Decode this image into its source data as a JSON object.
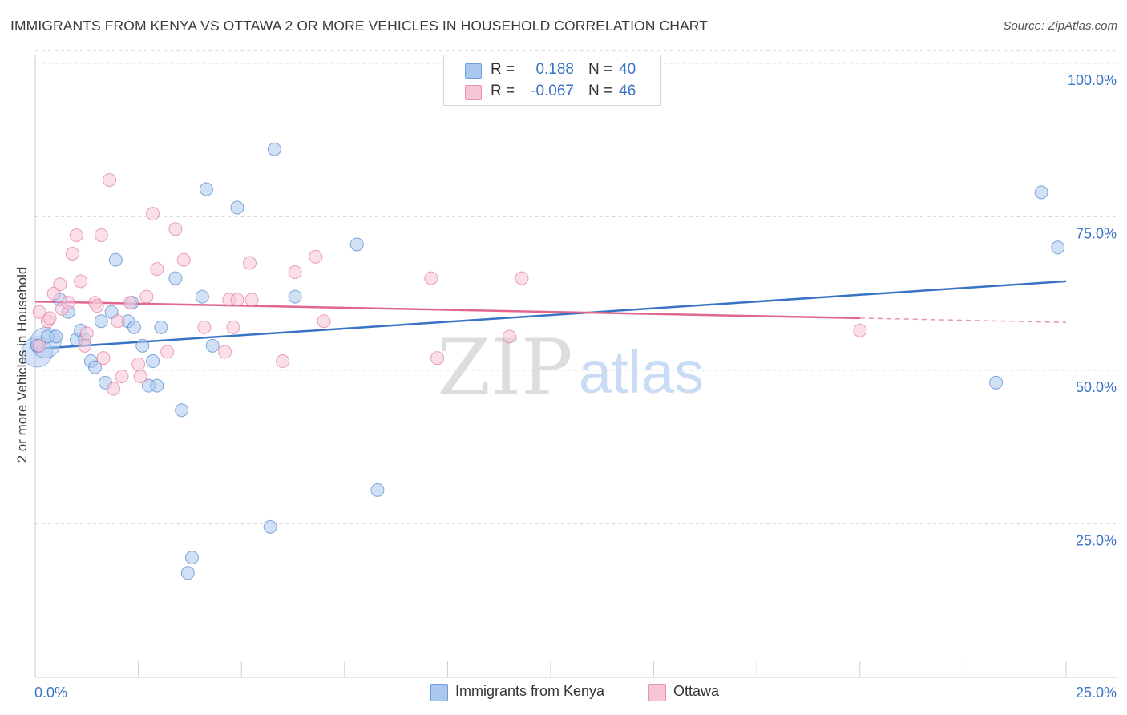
{
  "title": "IMMIGRANTS FROM KENYA VS OTTAWA 2 OR MORE VEHICLES IN HOUSEHOLD CORRELATION CHART",
  "source": "Source: ZipAtlas.com",
  "stats": [
    {
      "r_label": "R =",
      "r_value": "0.188",
      "n_label": "N =",
      "n_value": "40",
      "color": "#aac8ef",
      "border": "#6f9fdc"
    },
    {
      "r_label": "R =",
      "r_value": "-0.067",
      "n_label": "N =",
      "n_value": "46",
      "color": "#f8c5d6",
      "border": "#e98fb0"
    }
  ],
  "legend": [
    {
      "label": "Immigrants from Kenya",
      "color": "#aac8ef",
      "border": "#6f9fdc"
    },
    {
      "label": "Ottawa",
      "color": "#f8c5d6",
      "border": "#e98fb0"
    }
  ],
  "watermark": {
    "zip": "ZIP",
    "atlas": "atlas"
  },
  "chart_data": {
    "type": "scatter",
    "title": "IMMIGRANTS FROM KENYA VS OTTAWA 2 OR MORE VEHICLES IN HOUSEHOLD CORRELATION CHART",
    "xlabel": "",
    "ylabel": "2 or more Vehicles in Household",
    "xlim": [
      0,
      25
    ],
    "ylim": [
      0,
      105
    ],
    "x_tick_labels": [
      "0.0%",
      "25.0%"
    ],
    "x_ticks": [
      0,
      25
    ],
    "y_tick_labels": [
      "25.0%",
      "50.0%",
      "75.0%",
      "100.0%"
    ],
    "y_ticks": [
      25,
      50,
      75,
      100
    ],
    "grid": true,
    "colors": {
      "kenya": "#3973c6",
      "ottawa": "#e0658f",
      "tick_label": "#3973c6"
    },
    "series": [
      {
        "name": "Immigrants from Kenya",
        "color": "#3973c6",
        "fill": "#aac8ef",
        "points": [
          [
            0.05,
            54.0
          ],
          [
            0.3,
            55.5
          ],
          [
            0.5,
            55.5
          ],
          [
            0.6,
            61.5
          ],
          [
            0.8,
            59.5
          ],
          [
            1.0,
            55.0
          ],
          [
            1.1,
            56.5
          ],
          [
            1.2,
            55.0
          ],
          [
            1.35,
            51.5
          ],
          [
            1.45,
            50.5
          ],
          [
            1.6,
            58.0
          ],
          [
            1.7,
            48.0
          ],
          [
            1.85,
            59.5
          ],
          [
            1.95,
            68.0
          ],
          [
            2.25,
            58.0
          ],
          [
            2.35,
            61.0
          ],
          [
            2.4,
            57.0
          ],
          [
            2.6,
            54.0
          ],
          [
            2.75,
            47.5
          ],
          [
            2.85,
            51.5
          ],
          [
            2.95,
            47.5
          ],
          [
            3.05,
            57.0
          ],
          [
            3.4,
            65.0
          ],
          [
            3.55,
            43.5
          ],
          [
            3.7,
            17.0
          ],
          [
            3.8,
            19.5
          ],
          [
            4.05,
            62.0
          ],
          [
            4.15,
            79.5
          ],
          [
            4.3,
            54.0
          ],
          [
            4.9,
            76.5
          ],
          [
            5.7,
            24.5
          ],
          [
            5.8,
            86.0
          ],
          [
            6.3,
            62.0
          ],
          [
            7.8,
            70.5
          ],
          [
            8.3,
            30.5
          ],
          [
            23.3,
            48.0
          ],
          [
            24.4,
            79.0
          ],
          [
            24.8,
            70.0
          ]
        ],
        "big_points": [
          [
            0.05,
            53.0
          ],
          [
            0.25,
            54.5
          ]
        ],
        "trend": {
          "x": [
            0,
            25
          ],
          "y": [
            53.5,
            64.5
          ]
        }
      },
      {
        "name": "Ottawa",
        "color": "#e0658f",
        "fill": "#f8c5d6",
        "points": [
          [
            0.1,
            59.5
          ],
          [
            0.3,
            58.0
          ],
          [
            0.35,
            58.5
          ],
          [
            0.45,
            62.5
          ],
          [
            0.6,
            64.0
          ],
          [
            0.65,
            60.0
          ],
          [
            0.8,
            61.0
          ],
          [
            0.9,
            69.0
          ],
          [
            1.0,
            72.0
          ],
          [
            1.1,
            64.5
          ],
          [
            1.2,
            54.0
          ],
          [
            1.25,
            56.0
          ],
          [
            1.45,
            61.0
          ],
          [
            1.5,
            60.5
          ],
          [
            1.6,
            72.0
          ],
          [
            1.65,
            52.0
          ],
          [
            1.8,
            81.0
          ],
          [
            1.9,
            47.0
          ],
          [
            2.0,
            58.0
          ],
          [
            2.1,
            49.0
          ],
          [
            2.3,
            61.0
          ],
          [
            2.5,
            51.0
          ],
          [
            2.55,
            49.0
          ],
          [
            2.7,
            62.0
          ],
          [
            2.85,
            75.5
          ],
          [
            2.95,
            66.5
          ],
          [
            3.2,
            53.0
          ],
          [
            3.4,
            73.0
          ],
          [
            3.6,
            68.0
          ],
          [
            4.1,
            57.0
          ],
          [
            4.6,
            53.0
          ],
          [
            4.7,
            61.5
          ],
          [
            4.8,
            57.0
          ],
          [
            4.9,
            61.5
          ],
          [
            5.2,
            67.5
          ],
          [
            5.25,
            61.5
          ],
          [
            6.0,
            51.5
          ],
          [
            6.3,
            66.0
          ],
          [
            6.8,
            68.5
          ],
          [
            7.0,
            58.0
          ],
          [
            9.6,
            65.0
          ],
          [
            9.75,
            52.0
          ],
          [
            11.5,
            55.5
          ],
          [
            11.8,
            65.0
          ],
          [
            20.0,
            56.5
          ],
          [
            0.1,
            54.0
          ]
        ],
        "trend": {
          "x": [
            0,
            20
          ],
          "y": [
            61.2,
            58.5
          ]
        },
        "trend_dashed": {
          "x": [
            20,
            25
          ],
          "y": [
            58.5,
            57.8
          ]
        }
      }
    ]
  }
}
